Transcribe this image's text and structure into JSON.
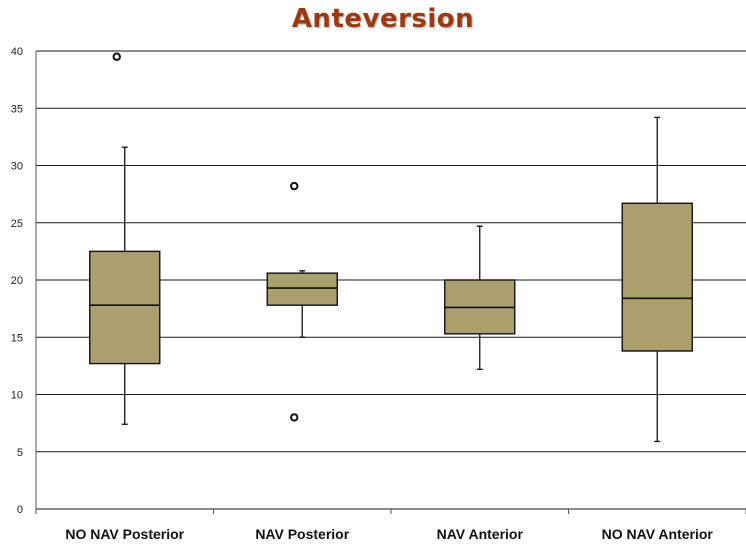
{
  "chart_data": {
    "type": "boxplot",
    "title": "Anteversion",
    "xlabel": "",
    "ylabel": "",
    "ylim": [
      0,
      40
    ],
    "yticks": [
      0,
      5,
      10,
      15,
      20,
      25,
      30,
      35,
      40
    ],
    "grid": true,
    "box_color": "#ab9f6e",
    "title_color": "#9a3a12",
    "categories": [
      "NO NAV Posterior",
      "NAV Posterior",
      "NAV Anterior",
      "NO NAV Anterior"
    ],
    "boxes": [
      {
        "category": "NO NAV Posterior",
        "whisker_low": 7.4,
        "q1": 12.7,
        "median": 17.8,
        "q3": 22.5,
        "whisker_high": 31.6,
        "outliers": [
          39.5
        ]
      },
      {
        "category": "NAV Posterior",
        "whisker_low": 15.0,
        "q1": 17.8,
        "median": 19.3,
        "q3": 20.6,
        "whisker_high": 20.8,
        "outliers": [
          28.2,
          8.0
        ]
      },
      {
        "category": "NAV Anterior",
        "whisker_low": 12.2,
        "q1": 15.3,
        "median": 17.6,
        "q3": 20.0,
        "whisker_high": 24.7,
        "outliers": []
      },
      {
        "category": "NO NAV Anterior",
        "whisker_low": 5.9,
        "q1": 13.8,
        "median": 18.4,
        "q3": 26.7,
        "whisker_high": 34.2,
        "outliers": []
      }
    ]
  }
}
